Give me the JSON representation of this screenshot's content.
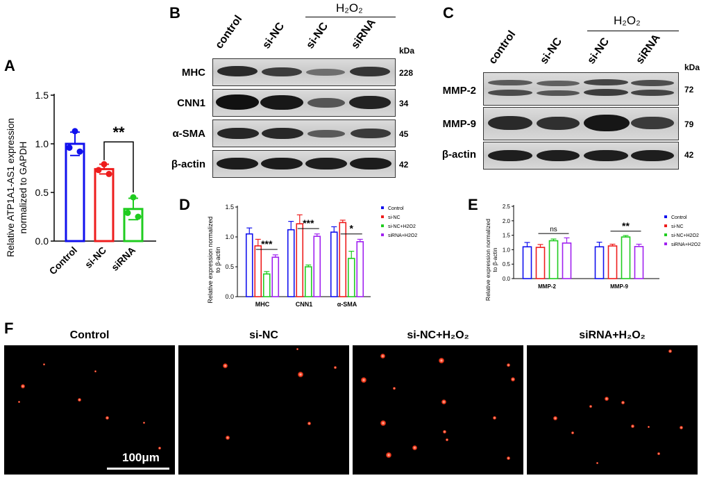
{
  "panels": {
    "A": "A",
    "B": "B",
    "C": "C",
    "D": "D",
    "E": "E",
    "F": "F"
  },
  "panel_a": {
    "ylabel": "Relative ATP1A1-AS1 expression normalized to GAPDH",
    "ylabel_line1": "Relative ATP1A1-AS1 expression",
    "ylabel_line2": "normalized to GAPDH",
    "significance": "**",
    "y_ticks": [
      "0.0",
      "0.5",
      "1.0",
      "1.5"
    ]
  },
  "blot_b": {
    "header": "H₂O₂",
    "lanes": [
      "control",
      "si-NC",
      "si-NC",
      "siRNA"
    ],
    "kda_label": "kDa",
    "rows": [
      {
        "label": "MHC",
        "kda": "228"
      },
      {
        "label": "CNN1",
        "kda": "34"
      },
      {
        "label": "α-SMA",
        "kda": "45"
      },
      {
        "label": "β-actin",
        "kda": "42"
      }
    ]
  },
  "blot_c": {
    "header": "H₂O₂",
    "lanes": [
      "control",
      "si-NC",
      "si-NC",
      "siRNA"
    ],
    "kda_label": "kDa",
    "rows": [
      {
        "label": "MMP-2",
        "kda": "72"
      },
      {
        "label": "MMP-9",
        "kda": "79"
      },
      {
        "label": "β-actin",
        "kda": "42"
      }
    ]
  },
  "panel_d": {
    "ylabel_line1": "Relative expression normalized",
    "ylabel_line2": "to β-actin",
    "y_ticks": [
      "0.0",
      "0.5",
      "1.0",
      "1.5"
    ],
    "sig": [
      "***",
      "***",
      "*"
    ]
  },
  "panel_e": {
    "ylabel_line1": "Relative expression normalized",
    "ylabel_line2": "to β-actin",
    "y_ticks": [
      "0.0",
      "0.5",
      "1.0",
      "1.5",
      "2.0",
      "2.5"
    ],
    "sig": [
      "ns",
      "**"
    ]
  },
  "panel_f": {
    "titles": [
      "Control",
      "si-NC",
      "si-NC+H₂O₂",
      "siRNA+H₂O₂"
    ],
    "scale_bar": "100μm"
  },
  "colors": {
    "blue": "#1010ee",
    "red": "#ee1c1c",
    "green": "#1fcc1f",
    "purple": "#a020f0"
  },
  "chart_data": [
    {
      "type": "bar",
      "panel": "A",
      "categories": [
        "Control",
        "si-NC",
        "siRNA"
      ],
      "values": [
        1.0,
        0.74,
        0.33
      ],
      "errors": [
        0.12,
        0.05,
        0.11
      ],
      "points": [
        [
          1.13,
          0.96,
          0.92
        ],
        [
          0.79,
          0.73,
          0.69
        ],
        [
          0.45,
          0.29,
          0.25
        ]
      ],
      "ylabel": "Relative ATP1A1-AS1 expression normalized to GAPDH",
      "ylim": [
        0,
        1.5
      ],
      "annotations": [
        {
          "between": [
            "si-NC",
            "siRNA"
          ],
          "text": "**"
        }
      ]
    },
    {
      "type": "bar",
      "panel": "D",
      "categories": [
        "MHC",
        "CNN1",
        "α-SMA"
      ],
      "series": [
        {
          "name": "Control",
          "values": [
            1.05,
            1.12,
            1.08
          ],
          "errors": [
            0.1,
            0.14,
            0.09
          ]
        },
        {
          "name": "si-NC",
          "values": [
            0.85,
            1.22,
            1.24
          ],
          "errors": [
            0.11,
            0.15,
            0.04
          ]
        },
        {
          "name": "si-NC+H2O2",
          "values": [
            0.38,
            0.5,
            0.64
          ],
          "errors": [
            0.04,
            0.03,
            0.12
          ]
        },
        {
          "name": "siRNA+H2O2",
          "values": [
            0.66,
            1.01,
            0.92
          ],
          "errors": [
            0.04,
            0.04,
            0.04
          ]
        }
      ],
      "ylabel": "Relative expression normalized to β-actin",
      "ylim": [
        0,
        1.5
      ],
      "legend": "top-right",
      "annotations": [
        "***",
        "***",
        "*"
      ]
    },
    {
      "type": "bar",
      "panel": "E",
      "categories": [
        "MMP-2",
        "MMP-9"
      ],
      "series": [
        {
          "name": "Control",
          "values": [
            1.1,
            1.1
          ],
          "errors": [
            0.15,
            0.16
          ]
        },
        {
          "name": "si-NC",
          "values": [
            1.08,
            1.13
          ],
          "errors": [
            0.1,
            0.06
          ]
        },
        {
          "name": "si-NC+H2O2",
          "values": [
            1.31,
            1.44
          ],
          "errors": [
            0.06,
            0.05
          ]
        },
        {
          "name": "siRNA+H2O2",
          "values": [
            1.23,
            1.11
          ],
          "errors": [
            0.18,
            0.08
          ]
        }
      ],
      "ylabel": "Relative expression normalized to β-actin",
      "ylim": [
        0,
        2.5
      ],
      "legend": "top-right",
      "annotations": [
        "ns",
        "**"
      ]
    }
  ]
}
